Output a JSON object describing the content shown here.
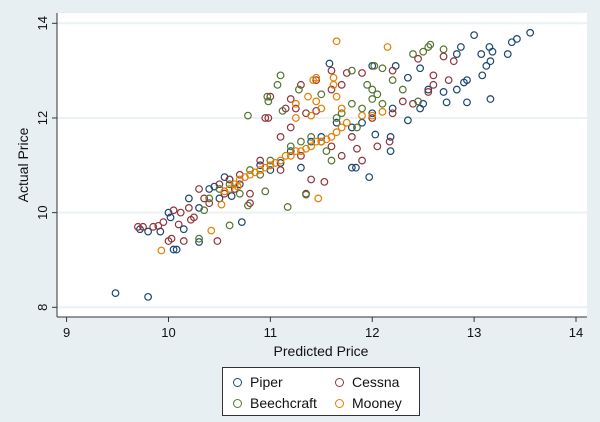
{
  "chart_data": {
    "type": "scatter",
    "title": "",
    "xlabel": "Predicted Price",
    "ylabel": "Actual Price",
    "xlim": [
      9,
      14
    ],
    "ylim": [
      8,
      14
    ],
    "xticks": [
      "9",
      "10",
      "11",
      "12",
      "13",
      "14"
    ],
    "yticks": [
      "8",
      "10",
      "12",
      "14"
    ],
    "grid": true,
    "legend_position": "bottom",
    "series": [
      {
        "name": "Piper",
        "color": "#1a476f",
        "points": [
          [
            9.48,
            8.3
          ],
          [
            9.8,
            8.22
          ],
          [
            13.55,
            13.8
          ],
          [
            13.42,
            13.67
          ],
          [
            13.37,
            13.6
          ],
          [
            13.0,
            13.75
          ],
          [
            13.15,
            13.5
          ],
          [
            13.18,
            13.4
          ],
          [
            13.07,
            13.35
          ],
          [
            13.33,
            13.35
          ],
          [
            13.16,
            13.2
          ],
          [
            13.12,
            13.1
          ],
          [
            12.87,
            13.5
          ],
          [
            12.83,
            13.35
          ],
          [
            13.08,
            12.9
          ],
          [
            12.93,
            12.8
          ],
          [
            12.9,
            12.75
          ],
          [
            12.83,
            12.6
          ],
          [
            12.7,
            12.55
          ],
          [
            13.16,
            12.4
          ],
          [
            12.93,
            12.33
          ],
          [
            12.73,
            12.33
          ],
          [
            12.5,
            12.3
          ],
          [
            12.47,
            12.2
          ],
          [
            12.35,
            11.95
          ],
          [
            12.18,
            11.6
          ],
          [
            12.18,
            11.3
          ],
          [
            12.03,
            11.65
          ],
          [
            11.97,
            10.75
          ],
          [
            11.84,
            10.95
          ],
          [
            11.8,
            10.95
          ],
          [
            11.58,
            13.15
          ],
          [
            12.0,
            13.1
          ],
          [
            12.47,
            13.05
          ],
          [
            12.35,
            12.85
          ],
          [
            12.23,
            13.1
          ],
          [
            12.55,
            12.6
          ],
          [
            9.72,
            9.65
          ],
          [
            9.8,
            9.6
          ],
          [
            9.92,
            9.6
          ],
          [
            10.05,
            9.22
          ],
          [
            10.08,
            9.22
          ],
          [
            10.3,
            9.38
          ],
          [
            10.72,
            9.8
          ],
          [
            10.0,
            10.0
          ],
          [
            10.15,
            9.65
          ],
          [
            10.2,
            10.3
          ],
          [
            10.4,
            10.5
          ],
          [
            10.55,
            10.75
          ],
          [
            10.6,
            10.7
          ],
          [
            10.7,
            10.6
          ],
          [
            11.0,
            10.9
          ],
          [
            11.3,
            10.95
          ],
          [
            11.2,
            11.3
          ],
          [
            11.5,
            11.6
          ],
          [
            11.8,
            11.8
          ],
          [
            12.0,
            12.1
          ],
          [
            12.2,
            12.2
          ],
          [
            11.9,
            11.9
          ],
          [
            10.9,
            11.0
          ],
          [
            10.5,
            10.3
          ],
          [
            10.3,
            10.1
          ],
          [
            10.62,
            10.35
          ],
          [
            11.1,
            11.05
          ],
          [
            11.65,
            11.9
          ],
          [
            11.4,
            11.5
          ],
          [
            10.02,
            9.9
          ],
          [
            10.45,
            10.55
          ]
        ]
      },
      {
        "name": "Cessna",
        "color": "#90353b",
        "points": [
          [
            9.7,
            9.7
          ],
          [
            9.75,
            9.7
          ],
          [
            9.85,
            9.7
          ],
          [
            9.9,
            9.72
          ],
          [
            9.95,
            9.8
          ],
          [
            10.0,
            9.4
          ],
          [
            10.03,
            9.45
          ],
          [
            10.15,
            9.4
          ],
          [
            10.48,
            9.4
          ],
          [
            10.05,
            10.05
          ],
          [
            10.1,
            9.75
          ],
          [
            10.2,
            10.1
          ],
          [
            10.3,
            10.5
          ],
          [
            10.4,
            10.2
          ],
          [
            10.6,
            10.7
          ],
          [
            10.8,
            10.2
          ],
          [
            10.95,
            12.0
          ],
          [
            10.98,
            12.0
          ],
          [
            11.0,
            12.45
          ],
          [
            11.2,
            12.4
          ],
          [
            11.3,
            12.7
          ],
          [
            11.45,
            12.8
          ],
          [
            11.6,
            13.0
          ],
          [
            11.75,
            12.95
          ],
          [
            11.9,
            12.95
          ],
          [
            12.2,
            13.0
          ],
          [
            12.45,
            13.25
          ],
          [
            12.7,
            13.3
          ],
          [
            12.8,
            13.2
          ],
          [
            12.75,
            12.8
          ],
          [
            12.6,
            12.9
          ],
          [
            12.55,
            12.55
          ],
          [
            12.4,
            12.3
          ],
          [
            12.2,
            12.1
          ],
          [
            12.05,
            11.4
          ],
          [
            12.17,
            11.5
          ],
          [
            11.9,
            11.1
          ],
          [
            11.53,
            10.65
          ],
          [
            11.4,
            10.7
          ],
          [
            11.35,
            10.4
          ],
          [
            11.3,
            11.2
          ],
          [
            11.0,
            11.0
          ],
          [
            10.9,
            11.1
          ],
          [
            11.1,
            11.6
          ],
          [
            11.2,
            11.8
          ],
          [
            11.5,
            11.5
          ],
          [
            11.6,
            12.6
          ],
          [
            11.7,
            12.7
          ],
          [
            11.45,
            12.15
          ],
          [
            11.1,
            10.9
          ],
          [
            10.7,
            10.8
          ],
          [
            10.5,
            10.6
          ],
          [
            10.8,
            10.4
          ],
          [
            10.65,
            10.5
          ],
          [
            11.7,
            11.2
          ],
          [
            11.8,
            11.6
          ],
          [
            12.0,
            12.0
          ],
          [
            10.25,
            9.9
          ],
          [
            10.35,
            10.3
          ],
          [
            10.12,
            10.0
          ],
          [
            10.22,
            9.85
          ],
          [
            11.25,
            12.2
          ],
          [
            11.35,
            12.1
          ],
          [
            11.15,
            12.2
          ],
          [
            12.3,
            12.35
          ],
          [
            12.6,
            12.7
          ],
          [
            11.85,
            11.35
          ],
          [
            11.6,
            11.4
          ],
          [
            10.55,
            10.4
          ]
        ]
      },
      {
        "name": "Beechcraft",
        "color": "#55752f",
        "points": [
          [
            10.78,
            12.05
          ],
          [
            11.1,
            12.9
          ],
          [
            11.07,
            12.7
          ],
          [
            10.97,
            12.45
          ],
          [
            10.98,
            12.35
          ],
          [
            11.28,
            12.6
          ],
          [
            11.12,
            12.15
          ],
          [
            11.17,
            10.12
          ],
          [
            10.6,
            9.73
          ],
          [
            10.3,
            9.45
          ],
          [
            10.78,
            10.15
          ],
          [
            10.95,
            10.45
          ],
          [
            11.35,
            10.38
          ],
          [
            11.6,
            11.1
          ],
          [
            11.5,
            12.5
          ],
          [
            11.8,
            13.0
          ],
          [
            12.02,
            13.1
          ],
          [
            12.1,
            13.05
          ],
          [
            12.4,
            13.35
          ],
          [
            12.55,
            13.5
          ],
          [
            12.57,
            13.55
          ],
          [
            12.7,
            13.45
          ],
          [
            12.5,
            13.4
          ],
          [
            12.2,
            12.8
          ],
          [
            12.0,
            12.6
          ],
          [
            12.05,
            12.5
          ],
          [
            12.3,
            12.6
          ],
          [
            12.45,
            12.35
          ],
          [
            12.1,
            12.3
          ],
          [
            11.9,
            12.2
          ],
          [
            11.7,
            12.1
          ],
          [
            11.4,
            11.6
          ],
          [
            11.2,
            11.4
          ],
          [
            11.0,
            11.1
          ],
          [
            10.8,
            10.9
          ],
          [
            10.6,
            10.6
          ],
          [
            10.4,
            10.3
          ],
          [
            10.5,
            10.5
          ],
          [
            10.35,
            10.05
          ],
          [
            10.7,
            10.4
          ],
          [
            11.55,
            11.3
          ],
          [
            11.85,
            11.8
          ],
          [
            12.0,
            12.4
          ],
          [
            11.95,
            12.7
          ],
          [
            11.8,
            12.3
          ],
          [
            11.65,
            12.0
          ],
          [
            11.3,
            11.5
          ],
          [
            10.9,
            10.8
          ]
        ]
      },
      {
        "name": "Mooney",
        "color": "#e37e00",
        "points": [
          [
            11.65,
            13.62
          ],
          [
            12.15,
            13.5
          ],
          [
            9.93,
            9.2
          ],
          [
            10.42,
            9.62
          ],
          [
            11.47,
            10.3
          ],
          [
            10.52,
            10.17
          ],
          [
            11.45,
            12.85
          ],
          [
            11.42,
            12.8
          ],
          [
            11.62,
            12.85
          ],
          [
            11.62,
            12.7
          ],
          [
            11.65,
            12.45
          ],
          [
            11.37,
            12.45
          ],
          [
            11.45,
            12.35
          ],
          [
            11.25,
            12.3
          ],
          [
            11.5,
            12.2
          ],
          [
            11.7,
            12.2
          ],
          [
            11.25,
            12.0
          ],
          [
            11.4,
            12.05
          ],
          [
            11.9,
            12.05
          ],
          [
            12.0,
            12.05
          ],
          [
            12.1,
            12.13
          ],
          [
            10.6,
            10.5
          ],
          [
            10.65,
            10.6
          ],
          [
            10.7,
            10.7
          ],
          [
            10.8,
            10.8
          ],
          [
            10.9,
            10.9
          ],
          [
            11.0,
            11.0
          ],
          [
            11.1,
            11.1
          ],
          [
            11.2,
            11.2
          ],
          [
            11.3,
            11.3
          ],
          [
            11.4,
            11.4
          ],
          [
            11.5,
            11.5
          ],
          [
            11.6,
            11.6
          ],
          [
            11.7,
            11.8
          ],
          [
            11.75,
            11.9
          ],
          [
            10.75,
            10.75
          ],
          [
            10.85,
            10.85
          ],
          [
            11.05,
            11.05
          ],
          [
            11.15,
            11.2
          ],
          [
            11.35,
            11.35
          ],
          [
            11.45,
            11.5
          ],
          [
            11.55,
            11.55
          ],
          [
            11.65,
            11.7
          ],
          [
            10.55,
            10.45
          ],
          [
            10.68,
            10.55
          ],
          [
            10.95,
            10.95
          ],
          [
            11.25,
            11.3
          ]
        ]
      }
    ]
  }
}
